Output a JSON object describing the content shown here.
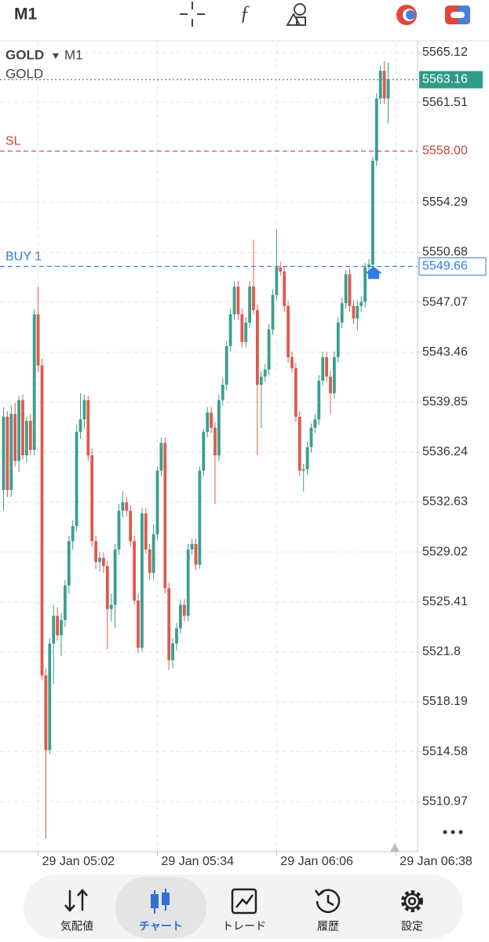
{
  "top_bar": {
    "timeframe": "M1"
  },
  "chart_data": {
    "type": "candlestick",
    "symbol": "GOLD",
    "timeframe": "M1",
    "subtitle": "GOLD",
    "up_color": "#3a9f8c",
    "down_color": "#dd5a50",
    "grid": true,
    "ylim": [
      5507.35,
      5565.8
    ],
    "yticks": [
      5565.12,
      5561.51,
      5554.29,
      5550.68,
      5547.07,
      5543.46,
      5539.85,
      5536.24,
      5532.63,
      5529.02,
      5525.41,
      5521.8,
      5518.19,
      5514.58,
      5510.97
    ],
    "price_lines": [
      {
        "value": 5563.16,
        "color": "#2e9c88"
      },
      {
        "name": "SL",
        "value": 5558,
        "value_label": "5558.00",
        "color": "#c9463d"
      },
      {
        "name": "BUY 1",
        "value": 5549.66,
        "color": "#2f7de1"
      }
    ],
    "categories": [
      null,
      null,
      null,
      null,
      null,
      null,
      null,
      null,
      null,
      "29 Jan 05:02",
      null,
      null,
      null,
      null,
      null,
      null,
      null,
      null,
      null,
      null,
      null,
      null,
      null,
      null,
      null,
      null,
      null,
      null,
      null,
      null,
      null,
      null,
      null,
      null,
      null,
      null,
      null,
      null,
      null,
      null,
      "29 Jan 05:34",
      null,
      null,
      null,
      null,
      null,
      null,
      null,
      null,
      null,
      null,
      null,
      null,
      null,
      null,
      null,
      null,
      null,
      null,
      null,
      null,
      null,
      null,
      null,
      null,
      null,
      null,
      null,
      null,
      null,
      null,
      "29 Jan 06:06",
      null,
      null,
      null,
      null,
      null,
      null,
      null,
      null,
      null,
      null,
      null,
      null,
      null,
      null,
      null,
      null,
      null,
      null,
      null,
      null,
      null,
      null,
      null,
      null,
      null,
      null,
      null,
      null,
      null,
      null,
      "29 Jan 06:38"
    ],
    "open": [
      5533.5,
      5538.8,
      5533.5,
      5539.0,
      5535.6,
      5540.0,
      5536.0,
      5538.5,
      5536.4,
      5546.2,
      5542.5,
      5520.1,
      5514.7,
      5522.4,
      5524.4,
      5523.0,
      5524.1,
      5526.6,
      5529.8,
      5530.9,
      5537.7,
      5538.6,
      5540.0,
      5536.0,
      5529.8,
      5528.3,
      5528.6,
      5528.0,
      5524.9,
      5525.2,
      5529.2,
      5532.0,
      5532.6,
      5532.0,
      5529.8,
      5525.5,
      5522.1,
      5531.8,
      5529.2,
      5527.5,
      5530.3,
      5534.9,
      5536.9,
      5526.4,
      5521.2,
      5522.4,
      5523.5,
      5525.2,
      5524.4,
      5529.2,
      5529.6,
      5528.1,
      5534.9,
      5537.7,
      5539.1,
      5538.0,
      5536.0,
      5540.0,
      5541.1,
      5543.9,
      5546.2,
      5548.2,
      5546.2,
      5544.2,
      5545.6,
      5548.2,
      5546.5,
      5541.1,
      5541.7,
      5542.2,
      5545.1,
      5547.6,
      5549.6,
      5549.3,
      5546.8,
      5543.1,
      5542.3,
      5538.8,
      5534.9,
      5535.0,
      5536.6,
      5538.0,
      5538.6,
      5541.4,
      5543.1,
      5541.7,
      5540.5,
      5543.1,
      5545.6,
      5547.0,
      5549.1,
      5546.8,
      5545.9,
      5546.8,
      5547.1,
      5549.6,
      5549.8,
      5557.3,
      5561.8,
      5563.8,
      5561.8,
      null,
      null
    ],
    "high": [
      5539.5,
      5539.2,
      5539.6,
      5539.8,
      5540.3,
      5540.4,
      5538.8,
      5539.0,
      5546.6,
      5548.2,
      5543.0,
      5520.6,
      5522.8,
      5525.2,
      5525.0,
      5524.6,
      5527.0,
      5530.2,
      5531.3,
      5538.2,
      5540.5,
      5540.4,
      5540.3,
      5536.5,
      5530.2,
      5529.0,
      5529.0,
      5528.4,
      5526.0,
      5529.6,
      5532.5,
      5533.4,
      5533.0,
      5532.4,
      5530.2,
      5526.0,
      5532.2,
      5532.2,
      5529.6,
      5531.0,
      5535.2,
      5537.3,
      5537.3,
      5526.8,
      5522.8,
      5523.9,
      5525.6,
      5525.6,
      5529.6,
      5530.0,
      5530.0,
      5535.2,
      5537.9,
      5539.5,
      5539.5,
      5538.4,
      5540.4,
      5541.6,
      5544.3,
      5546.6,
      5548.6,
      5548.6,
      5546.6,
      5546.0,
      5548.6,
      5551.6,
      5546.9,
      5542.1,
      5542.6,
      5545.5,
      5548.0,
      5552.3,
      5550.0,
      5549.7,
      5547.2,
      5543.5,
      5542.7,
      5539.2,
      5535.4,
      5537.0,
      5538.3,
      5539.0,
      5541.8,
      5543.5,
      5543.5,
      5542.1,
      5543.5,
      5546.0,
      5547.4,
      5549.4,
      5549.5,
      5547.2,
      5547.2,
      5547.5,
      5549.9,
      5550.2,
      5557.6,
      5562.2,
      5564.2,
      5564.5,
      5564.4,
      null,
      null
    ],
    "low": [
      5532.0,
      5533.0,
      5533.0,
      5535.2,
      5534.8,
      5535.7,
      5535.5,
      5536.0,
      5536.0,
      5542.0,
      5519.8,
      5508.3,
      5514.4,
      5519.5,
      5522.6,
      5521.5,
      5523.6,
      5526.0,
      5529.2,
      5530.5,
      5537.2,
      5537.9,
      5535.6,
      5529.4,
      5527.8,
      5527.6,
      5527.5,
      5522.0,
      5524.0,
      5523.5,
      5528.8,
      5531.5,
      5531.6,
      5529.4,
      5525.2,
      5521.7,
      5521.8,
      5528.9,
      5527.0,
      5527.0,
      5529.9,
      5534.5,
      5526.0,
      5520.5,
      5520.6,
      5521.9,
      5523.1,
      5524.0,
      5524.0,
      5528.8,
      5527.7,
      5527.8,
      5534.5,
      5537.3,
      5537.6,
      5532.5,
      5535.6,
      5539.6,
      5540.7,
      5543.5,
      5545.8,
      5545.8,
      5543.8,
      5543.8,
      5545.2,
      5546.2,
      5536.0,
      5538.0,
      5541.3,
      5541.8,
      5544.7,
      5547.2,
      5549.0,
      5546.4,
      5542.7,
      5542.0,
      5538.4,
      5534.5,
      5533.4,
      5534.6,
      5536.2,
      5537.6,
      5538.2,
      5541.0,
      5541.3,
      5539.0,
      5540.1,
      5542.7,
      5545.2,
      5546.6,
      5546.4,
      5545.5,
      5545.0,
      5546.4,
      5546.7,
      5549.2,
      5549.4,
      5556.9,
      5561.4,
      5561.4,
      5560.0,
      null,
      null
    ],
    "close": [
      5538.8,
      5533.5,
      5539.0,
      5535.6,
      5540.0,
      5536.0,
      5538.5,
      5536.4,
      5546.2,
      5542.5,
      5520.1,
      5514.7,
      5522.4,
      5524.4,
      5523.0,
      5524.1,
      5526.6,
      5529.8,
      5530.9,
      5537.7,
      5538.6,
      5540.0,
      5536.0,
      5529.8,
      5528.3,
      5528.6,
      5528.0,
      5524.9,
      5525.2,
      5529.2,
      5532.0,
      5532.6,
      5532.0,
      5529.8,
      5525.5,
      5522.1,
      5531.8,
      5529.2,
      5527.5,
      5530.3,
      5534.9,
      5536.9,
      5526.4,
      5521.2,
      5522.4,
      5523.5,
      5525.2,
      5524.4,
      5529.2,
      5529.6,
      5528.1,
      5534.9,
      5537.7,
      5539.1,
      5538.0,
      5536.0,
      5540.0,
      5541.1,
      5543.9,
      5546.2,
      5548.2,
      5546.2,
      5544.2,
      5545.6,
      5548.2,
      5546.5,
      5541.1,
      5541.7,
      5542.2,
      5545.1,
      5547.6,
      5549.6,
      5549.3,
      5546.8,
      5543.1,
      5542.3,
      5538.8,
      5534.9,
      5535.0,
      5536.6,
      5538.0,
      5538.6,
      5541.4,
      5543.1,
      5541.7,
      5540.5,
      5543.1,
      5545.6,
      5547.0,
      5549.1,
      5546.8,
      5545.9,
      5546.8,
      5547.1,
      5549.6,
      5549.8,
      5557.3,
      5561.8,
      5563.8,
      5561.8,
      5563.2,
      null,
      null
    ]
  },
  "nav": {
    "items": [
      "気配値",
      "チャート",
      "トレード",
      "履歴",
      "設定"
    ]
  }
}
